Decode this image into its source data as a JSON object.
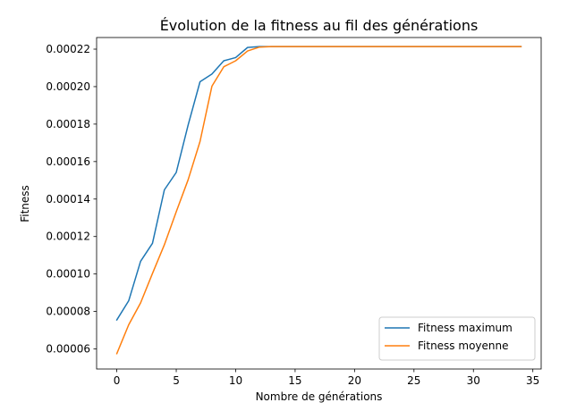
{
  "chart_data": {
    "type": "line",
    "title": "Évolution de la fitness au fil des générations",
    "xlabel": "Nombre de générations",
    "ylabel": "Fitness",
    "xlim": [
      -1.7,
      35.7
    ],
    "ylim": [
      4.93e-05,
      0.0002262
    ],
    "xticks": [
      0,
      5,
      10,
      15,
      20,
      25,
      30,
      35
    ],
    "yticks": [
      6e-05,
      8e-05,
      0.0001,
      0.00012,
      0.00014,
      0.00016,
      0.00018,
      0.0002,
      0.00022
    ],
    "ytick_labels": [
      "0.00006",
      "0.00008",
      "0.00010",
      "0.00012",
      "0.00014",
      "0.00016",
      "0.00018",
      "0.00020",
      "0.00022"
    ],
    "grid": false,
    "legend_position": "lower-right",
    "series": [
      {
        "name": "Fitness maximum",
        "color": "#1f77b4",
        "x": [
          0,
          1,
          2,
          3,
          4,
          5,
          6,
          7,
          8,
          9,
          10,
          11,
          12,
          13,
          14,
          15,
          16,
          17,
          18,
          19,
          20,
          21,
          22,
          23,
          24,
          25,
          26,
          27,
          28,
          29,
          30,
          31,
          32,
          33,
          34
        ],
        "values": [
          7.55e-05,
          8.57e-05,
          0.0001068,
          0.0001164,
          0.0001449,
          0.0001542,
          0.0001795,
          0.0002026,
          0.0002067,
          0.0002138,
          0.0002155,
          0.0002209,
          0.0002214,
          0.0002214,
          0.0002214,
          0.0002214,
          0.0002214,
          0.0002214,
          0.0002214,
          0.0002214,
          0.0002214,
          0.0002214,
          0.0002214,
          0.0002214,
          0.0002214,
          0.0002214,
          0.0002214,
          0.0002214,
          0.0002214,
          0.0002214,
          0.0002214,
          0.0002214,
          0.0002214,
          0.0002214,
          0.0002214
        ]
      },
      {
        "name": "Fitness moyenne",
        "color": "#ff7f0e",
        "x": [
          0,
          1,
          2,
          3,
          4,
          5,
          6,
          7,
          8,
          9,
          10,
          11,
          12,
          13,
          14,
          15,
          16,
          17,
          18,
          19,
          20,
          21,
          22,
          23,
          24,
          25,
          26,
          27,
          28,
          29,
          30,
          31,
          32,
          33,
          34
        ],
        "values": [
          5.75e-05,
          7.29e-05,
          8.46e-05,
          0.0001003,
          0.0001156,
          0.0001332,
          0.0001503,
          0.0001707,
          0.0002002,
          0.0002106,
          0.0002138,
          0.000219,
          0.0002211,
          0.0002214,
          0.0002214,
          0.0002214,
          0.0002214,
          0.0002214,
          0.0002214,
          0.0002214,
          0.0002214,
          0.0002214,
          0.0002214,
          0.0002214,
          0.0002214,
          0.0002214,
          0.0002214,
          0.0002214,
          0.0002214,
          0.0002214,
          0.0002214,
          0.0002214,
          0.0002214,
          0.0002214,
          0.0002214
        ]
      }
    ]
  }
}
